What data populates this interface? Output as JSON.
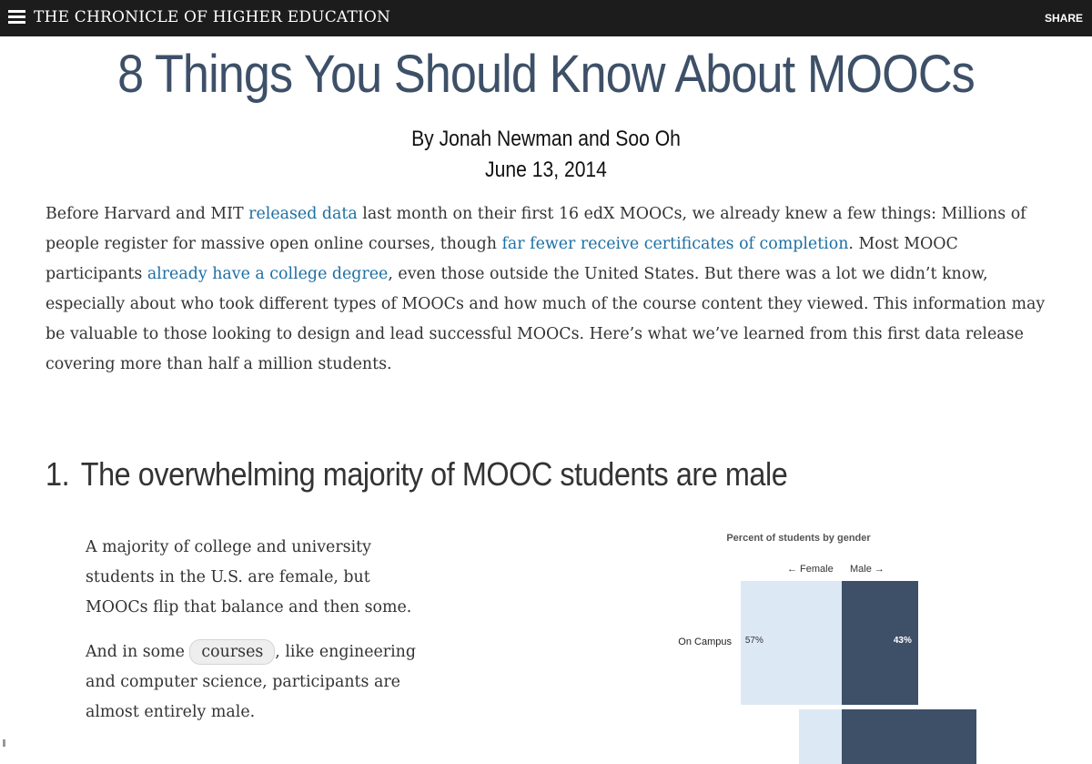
{
  "header": {
    "brand": "THE CHRONICLE OF HIGHER EDUCATION",
    "share_label": "SHARE",
    "menu_icon": "hamburger-menu-icon"
  },
  "article": {
    "title": "8 Things You Should Know About MOOCs",
    "byline": "By Jonah Newman and Soo Oh",
    "date": "June 13, 2014",
    "intro": {
      "t1": "Before Harvard and MIT ",
      "link1": "released data",
      "t2": " last month on their first 16 edX MOOCs, we already knew a few things: Millions of people register for massive open online courses, though ",
      "link2": "far fewer receive certificates of completion",
      "t3": ". Most MOOC participants ",
      "link3": "already have a college degree",
      "t4": ", even those outside the United States. But there was a lot we didn’t know, especially about who took different types of MOOCs and how much of the course content they viewed. This information may be valuable to those looking to design and lead successful MOOCs. Here’s what we’ve learned from this first data release covering more than half a million students."
    },
    "section1": {
      "number": "1.",
      "heading": "The overwhelming majority of MOOC students are male",
      "para1": "A majority of college and university students in the U.S. are female, but MOOCs flip that balance and then some.",
      "para2_before": "And in some ",
      "para2_chip": "courses",
      "para2_after": ", like engineering and computer science, participants are almost entirely male."
    }
  },
  "chart_data": {
    "type": "bar",
    "title": "Percent of students by gender",
    "legend": [
      "← Female",
      "Male →"
    ],
    "categories": [
      "On Campus",
      ""
    ],
    "series": [
      {
        "name": "Female",
        "values": [
          57,
          null
        ],
        "labels": [
          "57%",
          ""
        ]
      },
      {
        "name": "Male",
        "values": [
          43,
          null
        ],
        "labels": [
          "43%",
          ""
        ]
      }
    ],
    "colors": {
      "female": "#dde8f5",
      "male": "#3d5068"
    }
  }
}
